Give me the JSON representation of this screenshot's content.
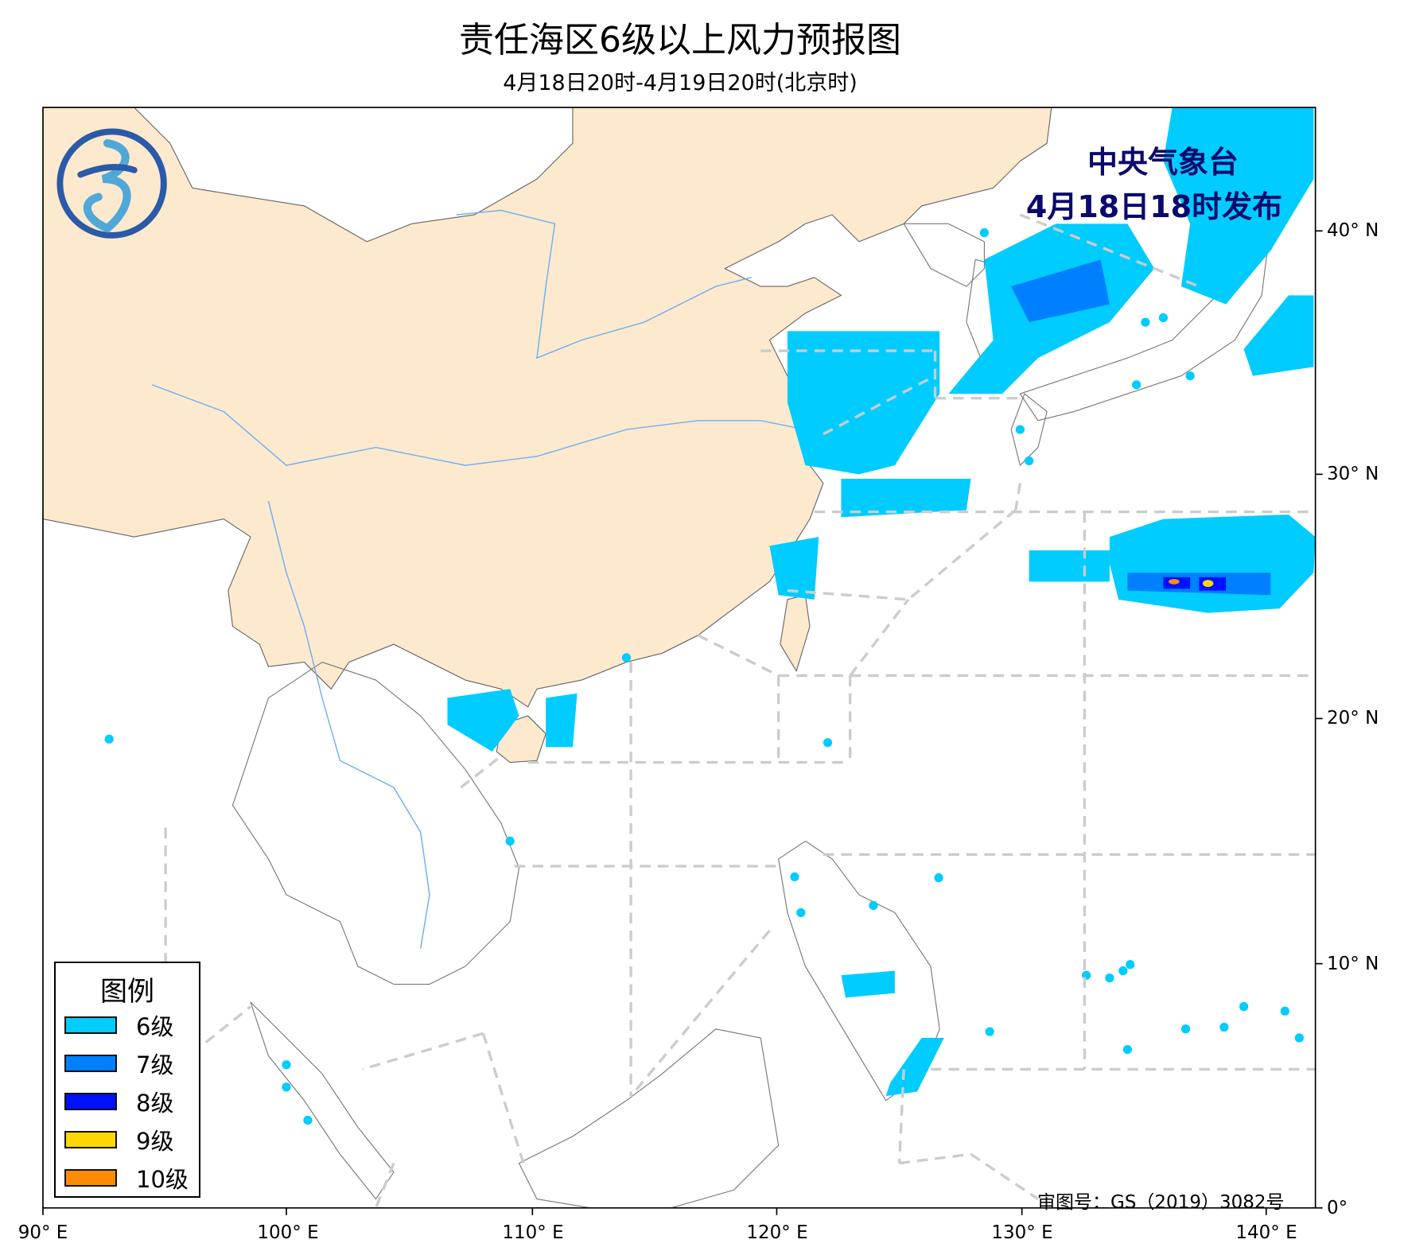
{
  "title": "责任海区6级以上风力预报图",
  "subtitle": "4月18日20时-4月19日20时(北京时)",
  "issuer": {
    "name": "中央气象台",
    "issued": "4月18日18时发布"
  },
  "legend": {
    "title": "图例",
    "items": [
      {
        "label": "6级",
        "color": "#00CCFF"
      },
      {
        "label": "7级",
        "color": "#0080FF"
      },
      {
        "label": "8级",
        "color": "#0011FF"
      },
      {
        "label": "9级",
        "color": "#FFD700"
      },
      {
        "label": "10级",
        "color": "#FF8C00"
      }
    ]
  },
  "axes": {
    "x_ticks": [
      "90° E",
      "100° E",
      "110° E",
      "120° E",
      "130° E",
      "140° E"
    ],
    "y_ticks": [
      "40° N",
      "30° N",
      "20° N",
      "10° N",
      "0°"
    ]
  },
  "approval_number": "审图号：GS（2019）3082号",
  "colors": {
    "land_china": "#FDE9CD",
    "sea_boundary": "#CCCCCC",
    "river": "#6FB0F5",
    "title_overlay": "#0A0A6E"
  }
}
